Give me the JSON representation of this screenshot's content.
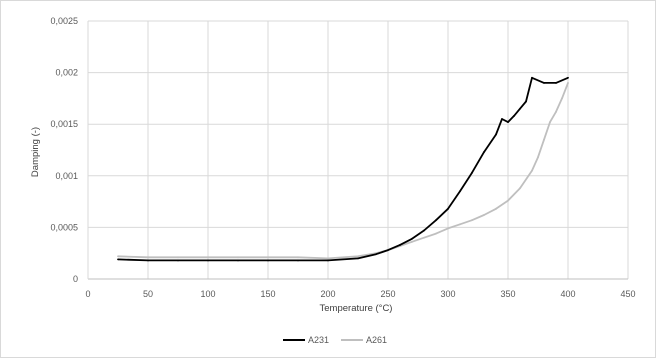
{
  "chart_data": {
    "type": "line",
    "title": "",
    "xlabel": "Temperature (°C)",
    "ylabel": "Damping (-)",
    "xlim": [
      0,
      450
    ],
    "ylim": [
      0,
      0.0025
    ],
    "x_ticks": [
      0,
      50,
      100,
      150,
      200,
      250,
      300,
      350,
      400,
      450
    ],
    "x_tick_labels": [
      "0",
      "50",
      "100",
      "150",
      "200",
      "250",
      "300",
      "350",
      "400",
      "450"
    ],
    "y_ticks": [
      0,
      0.0005,
      0.001,
      0.0015,
      0.002,
      0.0025
    ],
    "y_tick_labels": [
      "0",
      "0,0005",
      "0,001",
      "0,0015",
      "0,002",
      "0,0025"
    ],
    "grid": true,
    "legend_position": "bottom",
    "series": [
      {
        "name": "A231",
        "color": "#000000",
        "x": [
          25,
          50,
          75,
          100,
          125,
          150,
          175,
          200,
          225,
          240,
          250,
          260,
          270,
          280,
          290,
          300,
          310,
          320,
          330,
          340,
          345,
          350,
          355,
          360,
          365,
          370,
          380,
          390,
          400
        ],
        "y": [
          0.00019,
          0.00018,
          0.00018,
          0.00018,
          0.00018,
          0.00018,
          0.00018,
          0.00018,
          0.0002,
          0.00024,
          0.00028,
          0.00033,
          0.00039,
          0.00047,
          0.00057,
          0.00068,
          0.00085,
          0.00103,
          0.00123,
          0.0014,
          0.00155,
          0.00152,
          0.00158,
          0.00165,
          0.00172,
          0.00195,
          0.0019,
          0.0019,
          0.00195
        ]
      },
      {
        "name": "A261",
        "color": "#bfbfbf",
        "x": [
          25,
          50,
          75,
          100,
          125,
          150,
          175,
          200,
          225,
          240,
          250,
          260,
          270,
          280,
          290,
          300,
          310,
          320,
          330,
          340,
          350,
          360,
          370,
          375,
          380,
          385,
          390,
          395,
          400
        ],
        "y": [
          0.00022,
          0.00021,
          0.00021,
          0.00021,
          0.00021,
          0.00021,
          0.00021,
          0.0002,
          0.00022,
          0.00025,
          0.00028,
          0.00032,
          0.00036,
          0.0004,
          0.00044,
          0.00049,
          0.00053,
          0.00057,
          0.00062,
          0.00068,
          0.00076,
          0.00088,
          0.00105,
          0.00118,
          0.00135,
          0.00152,
          0.00162,
          0.00175,
          0.0019
        ]
      }
    ]
  }
}
